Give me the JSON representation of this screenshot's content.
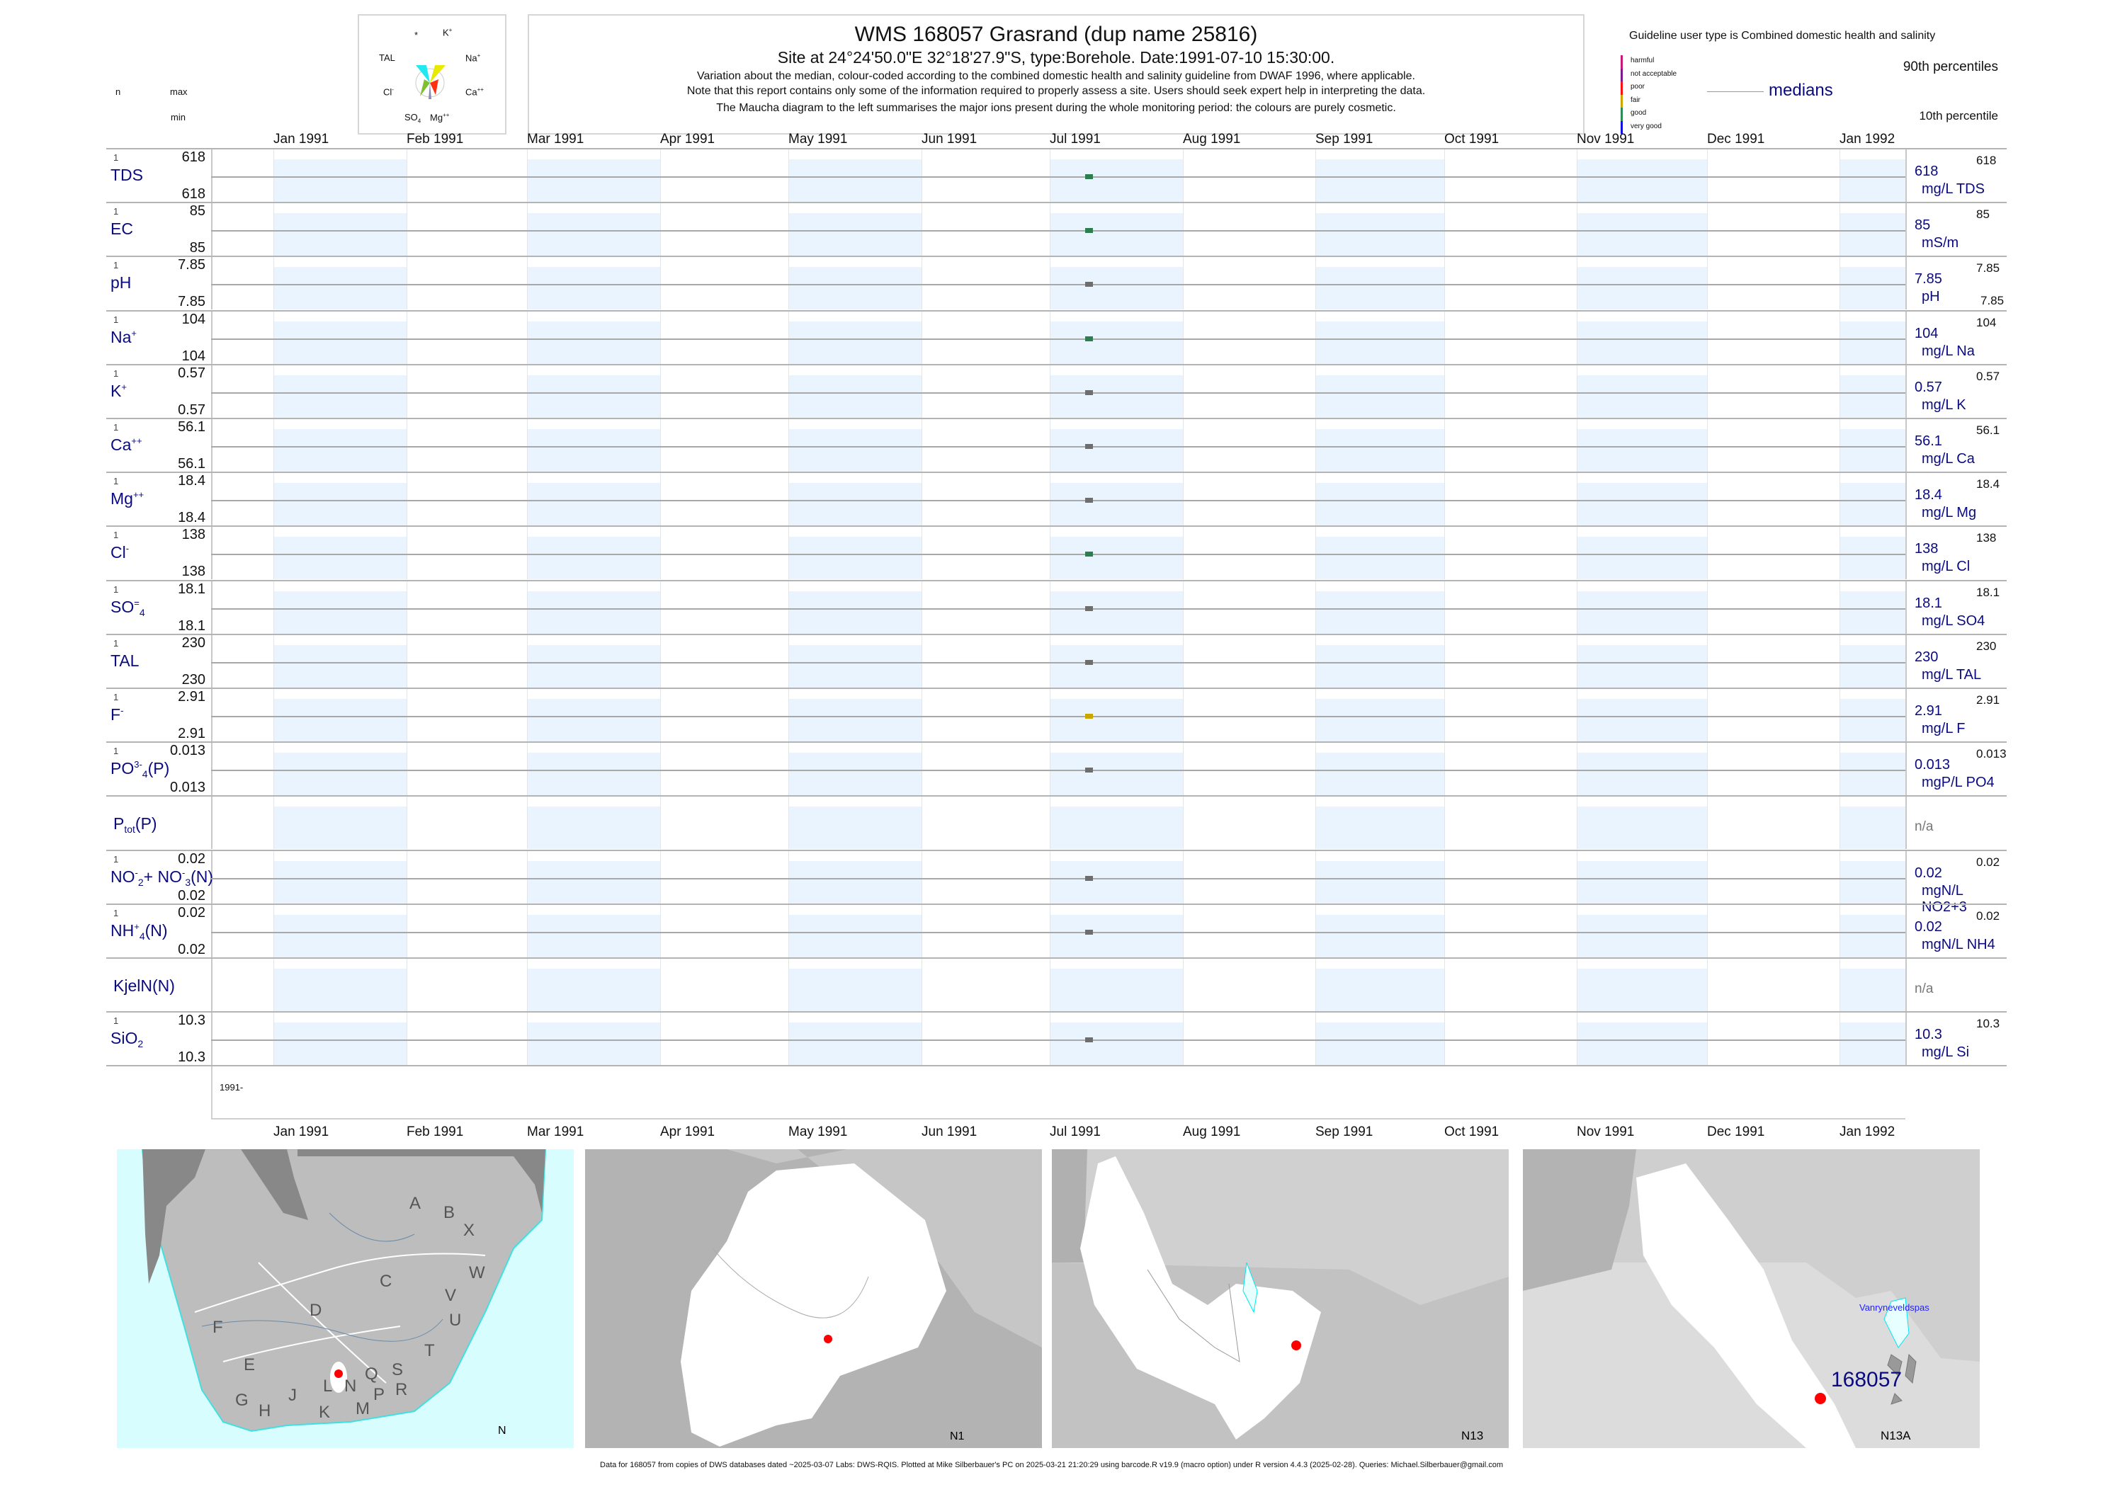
{
  "header": {
    "title": "WMS 168057  Grasrand (dup name 25816)",
    "subtitle": "Site at 24°24'50.0\"E 32°18'27.9\"S, type:Borehole. Date:1991-07-10 15:30:00.",
    "note1": "Variation about the median,  colour-coded according to the combined domestic health and salinity guideline from DWAF 1996, where applicable.",
    "note2": "Note that this report contains only some of the information required to properly assess a site. Users should seek expert help in interpreting the data.",
    "note3": "The Maucha diagram to the left summarises the major ions present during the whole monitoring period: the colours are purely cosmetic.",
    "col_n": "n",
    "col_max": "max",
    "col_min": "min"
  },
  "maucha": {
    "labels": {
      "star": "*",
      "k": "K",
      "na": "Na",
      "ca": "Ca",
      "mg": "Mg",
      "so4": "SO",
      "cl": "Cl",
      "tal": "TAL"
    }
  },
  "legend": {
    "guideline": "Guideline user type is Combined domestic health and salinity",
    "classes": [
      {
        "label": "harmful",
        "color": "#c8187a"
      },
      {
        "label": "not acceptable",
        "color": "#7a1a8c"
      },
      {
        "label": "poor",
        "color": "#ff1010"
      },
      {
        "label": "fair",
        "color": "#d0a400"
      },
      {
        "label": "good",
        "color": "#2e8b57"
      },
      {
        "label": "very good",
        "color": "#1010e0"
      }
    ],
    "p90": "90th percentiles",
    "medians": "medians",
    "p10": "10th percentile"
  },
  "months": [
    "Jan 1991",
    "Feb 1991",
    "Mar 1991",
    "Apr 1991",
    "May 1991",
    "Jun 1991",
    "Jul 1991",
    "Aug 1991",
    "Sep 1991",
    "Oct 1991",
    "Nov 1991",
    "Dec 1991",
    "Jan 1992"
  ],
  "year_label": "1991-",
  "chart_data": {
    "type": "scatter",
    "title": "WMS 168057  Grasrand (dup name 25816)",
    "x_range": [
      "1991-01-01",
      "1992-01-31"
    ],
    "sample_date": "1991-07-10",
    "rows": [
      {
        "id": "tds",
        "label": [
          [
            "TDS",
            ""
          ]
        ],
        "n": "1",
        "max": "618",
        "min": "618",
        "median": "618",
        "unit": "mg/L TDS",
        "p90": "618",
        "color": "#2e7d4f"
      },
      {
        "id": "ec",
        "label": [
          [
            "EC",
            ""
          ]
        ],
        "n": "1",
        "max": "85",
        "min": "85",
        "median": "85",
        "unit": "mS/m",
        "p90": "85",
        "color": "#2e7d4f"
      },
      {
        "id": "ph",
        "label": [
          [
            "pH",
            ""
          ]
        ],
        "n": "1",
        "max": "7.85",
        "min": "7.85",
        "median": "7.85",
        "unit": "pH",
        "p90": "7.85",
        "p10": "7.85",
        "color": "#6e6e6e"
      },
      {
        "id": "na",
        "label": [
          [
            "Na",
            ""
          ],
          [
            "+",
            "sup"
          ]
        ],
        "n": "1",
        "max": "104",
        "min": "104",
        "median": "104",
        "unit": "mg/L Na",
        "p90": "104",
        "color": "#2e7d4f"
      },
      {
        "id": "k",
        "label": [
          [
            "K",
            ""
          ],
          [
            "+",
            "sup"
          ]
        ],
        "n": "1",
        "max": "0.57",
        "min": "0.57",
        "median": "0.57",
        "unit": "mg/L K",
        "p90": "0.57",
        "color": "#6e6e6e"
      },
      {
        "id": "ca",
        "label": [
          [
            "Ca",
            ""
          ],
          [
            "++",
            "sup"
          ]
        ],
        "n": "1",
        "max": "56.1",
        "min": "56.1",
        "median": "56.1",
        "unit": "mg/L Ca",
        "p90": "56.1",
        "color": "#6e6e6e"
      },
      {
        "id": "mg",
        "label": [
          [
            "Mg",
            ""
          ],
          [
            "++",
            "sup"
          ]
        ],
        "n": "1",
        "max": "18.4",
        "min": "18.4",
        "median": "18.4",
        "unit": "mg/L Mg",
        "p90": "18.4",
        "color": "#6e6e6e"
      },
      {
        "id": "cl",
        "label": [
          [
            "Cl",
            ""
          ],
          [
            "-",
            "sup"
          ]
        ],
        "n": "1",
        "max": "138",
        "min": "138",
        "median": "138",
        "unit": "mg/L Cl",
        "p90": "138",
        "color": "#2e7d4f"
      },
      {
        "id": "so4",
        "label": [
          [
            "SO",
            ""
          ],
          [
            "=",
            "sup"
          ],
          [
            "4",
            "sub"
          ]
        ],
        "n": "1",
        "max": "18.1",
        "min": "18.1",
        "median": "18.1",
        "unit": "mg/L SO4",
        "p90": "18.1",
        "color": "#6e6e6e"
      },
      {
        "id": "tal",
        "label": [
          [
            "TAL",
            ""
          ]
        ],
        "n": "1",
        "max": "230",
        "min": "230",
        "median": "230",
        "unit": "mg/L TAL",
        "p90": "230",
        "color": "#6e6e6e"
      },
      {
        "id": "f",
        "label": [
          [
            "F",
            ""
          ],
          [
            "-",
            "sup"
          ]
        ],
        "n": "1",
        "max": "2.91",
        "min": "2.91",
        "median": "2.91",
        "unit": "mg/L F",
        "p90": "2.91",
        "color": "#c8a800"
      },
      {
        "id": "po4",
        "label": [
          [
            "PO",
            ""
          ],
          [
            "3-",
            "sup"
          ],
          [
            "4",
            "sub"
          ],
          [
            "(P)",
            ""
          ]
        ],
        "n": "1",
        "max": "0.013",
        "min": "0.013",
        "median": "0.013",
        "unit": "mgP/L PO4",
        "p90": "0.013",
        "color": "#6e6e6e"
      },
      {
        "id": "ptot",
        "label": [
          [
            "P",
            ""
          ],
          [
            "tot",
            "sub"
          ],
          [
            "(P)",
            ""
          ]
        ],
        "na": "n/a"
      },
      {
        "id": "no23",
        "label": [
          [
            "NO",
            ""
          ],
          [
            "-",
            "sup"
          ],
          [
            "2",
            "sub"
          ],
          [
            "+ NO",
            ""
          ],
          [
            "-",
            "sup"
          ],
          [
            "3",
            "sub"
          ],
          [
            "(N)",
            ""
          ]
        ],
        "n": "1",
        "max": "0.02",
        "min": "0.02",
        "median": "0.02",
        "unit": "mgN/L NO2+3",
        "p90": "0.02",
        "color": "#6e6e6e"
      },
      {
        "id": "nh4",
        "label": [
          [
            "NH",
            ""
          ],
          [
            "+",
            "sup"
          ],
          [
            "4",
            "sub"
          ],
          [
            "(N)",
            ""
          ]
        ],
        "n": "1",
        "max": "0.02",
        "min": "0.02",
        "median": "0.02",
        "unit": "mgN/L NH4",
        "p90": "0.02",
        "color": "#6e6e6e"
      },
      {
        "id": "kjeln",
        "label": [
          [
            "KjelN(N)",
            ""
          ]
        ],
        "na": "n/a"
      },
      {
        "id": "sio2",
        "label": [
          [
            "SiO",
            ""
          ],
          [
            "2",
            "sub"
          ]
        ],
        "n": "1",
        "max": "10.3",
        "min": "10.3",
        "median": "10.3",
        "unit": "mg/L Si",
        "p90": "10.3",
        "color": "#6e6e6e"
      }
    ]
  },
  "maps": {
    "letters": [
      "A",
      "B",
      "X",
      "W",
      "C",
      "V",
      "D",
      "U",
      "F",
      "T",
      "E",
      "S",
      "Q",
      "L",
      "N",
      "R",
      "P",
      "G",
      "J",
      "H",
      "K",
      "M"
    ],
    "m1_label": "N",
    "m2_label": "N1",
    "m3_label": "N13",
    "m4_label": "N13A",
    "site_label": "168057",
    "dam_label": "Vanryneveldspas"
  },
  "footer": "Data for 168057 from copies of DWS databases dated ~2025-03-07 Labs: DWS-RQIS. Plotted at Mike Silberbauer's PC on 2025-03-21 21:20:29 using barcode.R v19.9 (macro option) under R version 4.4.3 (2025-02-28). Queries: Michael.Silberbauer@gmail.com"
}
